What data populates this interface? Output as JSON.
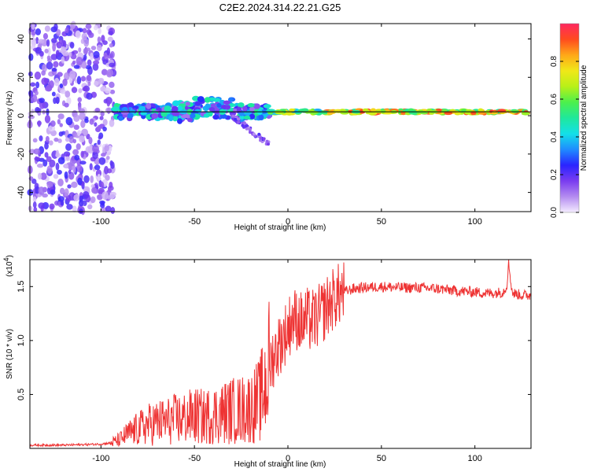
{
  "figure_title": "C2E2.2024.314.22.21.G25",
  "colors": {
    "snr_line": "#ee3333",
    "frame": "#000000",
    "spectrogram_reference_line": "#000000"
  },
  "chart_data": [
    {
      "id": "spectrogram",
      "type": "heatmap",
      "title": "C2E2.2024.314.22.21.G25",
      "xlabel": "Height of straight line (km)",
      "ylabel": "Frequency (Hz)",
      "xlim": [
        -138,
        130
      ],
      "ylim": [
        -50,
        48
      ],
      "xticks": [
        -100,
        -50,
        0,
        50,
        100
      ],
      "xtick_labels": [
        "-100",
        "-50",
        "0",
        "50",
        "100"
      ],
      "yticks": [
        -40,
        -20,
        0,
        20,
        40
      ],
      "ytick_labels": [
        "-40",
        "-20",
        "0",
        "20",
        "40"
      ],
      "reference_line_hz": 2,
      "colorbar": {
        "label": "Normalized spectral amplitude",
        "range": [
          0,
          1
        ],
        "ticks": [
          0,
          0.2,
          0.4,
          0.6,
          0.8
        ],
        "tick_labels": [
          "0.0",
          "0.2",
          "0.4",
          "0.6",
          "0.8"
        ],
        "colormap": [
          "#f4ecff",
          "#b48cf0",
          "#7a3cf0",
          "#2a24ff",
          "#1f8cff",
          "#13e0e8",
          "#1fe89c",
          "#4cf04c",
          "#b8f018",
          "#f0e818",
          "#ffa818",
          "#ff4b1e",
          "#ff2860"
        ]
      },
      "features": [
        {
          "region": "noise",
          "x_range": [
            -138,
            -93
          ],
          "freq_range": [
            -50,
            48
          ],
          "amplitude": 0.1
        },
        {
          "region": "signal",
          "x_range": [
            -93,
            -10
          ],
          "freq_center": 2,
          "amplitude": 0.35
        },
        {
          "region": "drift_tail",
          "x_range": [
            -30,
            -10
          ],
          "freq_range": [
            -15,
            0
          ],
          "amplitude": 0.15
        },
        {
          "region": "signal",
          "x_range": [
            -10,
            130
          ],
          "freq_center": 2,
          "amplitude": 0.9
        }
      ]
    },
    {
      "id": "snr",
      "type": "line",
      "xlabel": "Height of straight line (km)",
      "ylabel": "SNR (10 * v/v)",
      "scale_label": "(x10",
      "scale_exponent": "4",
      "xlim": [
        -138,
        130
      ],
      "ylim": [
        0,
        1.75
      ],
      "xticks": [
        -100,
        -50,
        0,
        50,
        100
      ],
      "xtick_labels": [
        "-100",
        "-50",
        "0",
        "50",
        "100"
      ],
      "yticks": [
        0.5,
        1.0,
        1.5
      ],
      "ytick_labels": [
        "0.5",
        "1.0",
        "1.5"
      ],
      "series": [
        {
          "name": "SNR",
          "x": [
            -138,
            -120,
            -100,
            -95,
            -90,
            -85,
            -80,
            -75,
            -70,
            -65,
            -60,
            -55,
            -50,
            -45,
            -40,
            -35,
            -30,
            -25,
            -20,
            -15,
            -12,
            -10,
            -8,
            -5,
            -2,
            0,
            2,
            5,
            8,
            10,
            12,
            15,
            18,
            20,
            25,
            30,
            35,
            40,
            50,
            60,
            70,
            80,
            90,
            100,
            105,
            110,
            115,
            117,
            118,
            120,
            125,
            130
          ],
          "values": [
            0.03,
            0.03,
            0.04,
            0.05,
            0.08,
            0.14,
            0.18,
            0.22,
            0.24,
            0.25,
            0.27,
            0.28,
            0.3,
            0.29,
            0.31,
            0.33,
            0.35,
            0.36,
            0.38,
            0.45,
            0.6,
            0.75,
            0.85,
            0.95,
            1.05,
            1.1,
            1.2,
            1.2,
            1.15,
            1.2,
            1.18,
            1.2,
            1.25,
            1.3,
            1.4,
            1.45,
            1.48,
            1.49,
            1.5,
            1.49,
            1.49,
            1.48,
            1.46,
            1.45,
            1.44,
            1.44,
            1.45,
            1.5,
            1.72,
            1.44,
            1.42,
            1.42
          ]
        }
      ]
    }
  ]
}
